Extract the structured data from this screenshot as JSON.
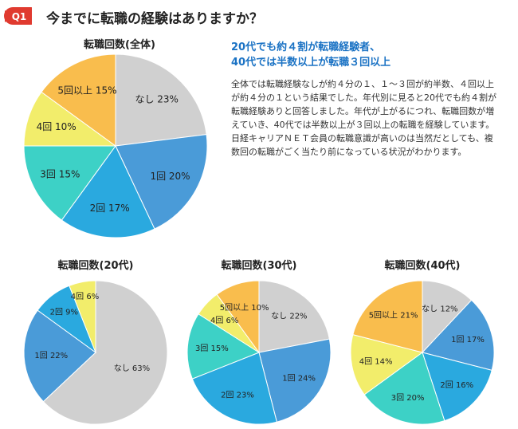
{
  "question": {
    "badge": "Q1",
    "title": "今までに転職の経験はありますか？",
    "badge_color": "#e03a2f"
  },
  "summary": {
    "headline_line1": "20代でも約４割が転職経験者、",
    "headline_line2": "40代では半数以上が転職３回以上",
    "body": "全体では転職経験なしが約４分の１、１～３回が約半数、４回以上が約４分の１という結果でした。年代別に見ると20代でも約４割が転職経験ありと回答しました。年代が上がるにつれ、転職回数が増えていき、40代では半数以上が３回以上の転職を経験しています。日経キャリアＮＥＴ会員の転職意識が高いのは当然だとしても、複数回の転職がごく当たり前になっている状況がわかります。"
  },
  "colors": {
    "なし": "#d0d0d0",
    "1回": "#4a9bd8",
    "2回": "#2aa9df",
    "3回": "#3dd1c6",
    "4回": "#f2ed6b",
    "5回以上": "#f9bd4d"
  },
  "chart_data": [
    {
      "type": "pie",
      "title": "転職回数(全体)",
      "categories": [
        "なし",
        "1回",
        "2回",
        "3回",
        "4回",
        "5回以上"
      ],
      "values": [
        23,
        20,
        17,
        15,
        10,
        15
      ],
      "labels": [
        "なし 23%",
        "1回 20%",
        "2回 17%",
        "3回 15%",
        "4回 10%",
        "5回以上 15%"
      ]
    },
    {
      "type": "pie",
      "title": "転職回数(20代)",
      "categories": [
        "なし",
        "1回",
        "2回",
        "4回"
      ],
      "values": [
        63,
        22,
        9,
        6
      ],
      "labels": [
        "なし 63%",
        "1回 22%",
        "2回 9%",
        "4回 6%"
      ]
    },
    {
      "type": "pie",
      "title": "転職回数(30代)",
      "categories": [
        "なし",
        "1回",
        "2回",
        "3回",
        "4回",
        "5回以上"
      ],
      "values": [
        22,
        24,
        23,
        15,
        6,
        10
      ],
      "labels": [
        "なし 22%",
        "1回 24%",
        "2回 23%",
        "3回 15%",
        "4回 6%",
        "5回以上 10%"
      ]
    },
    {
      "type": "pie",
      "title": "転職回数(40代)",
      "categories": [
        "なし",
        "1回",
        "2回",
        "3回",
        "4回",
        "5回以上"
      ],
      "values": [
        12,
        17,
        16,
        20,
        14,
        21
      ],
      "labels": [
        "なし 12%",
        "1回 17%",
        "2回 16%",
        "3回 20%",
        "4回 14%",
        "5回以上 21%"
      ]
    }
  ]
}
